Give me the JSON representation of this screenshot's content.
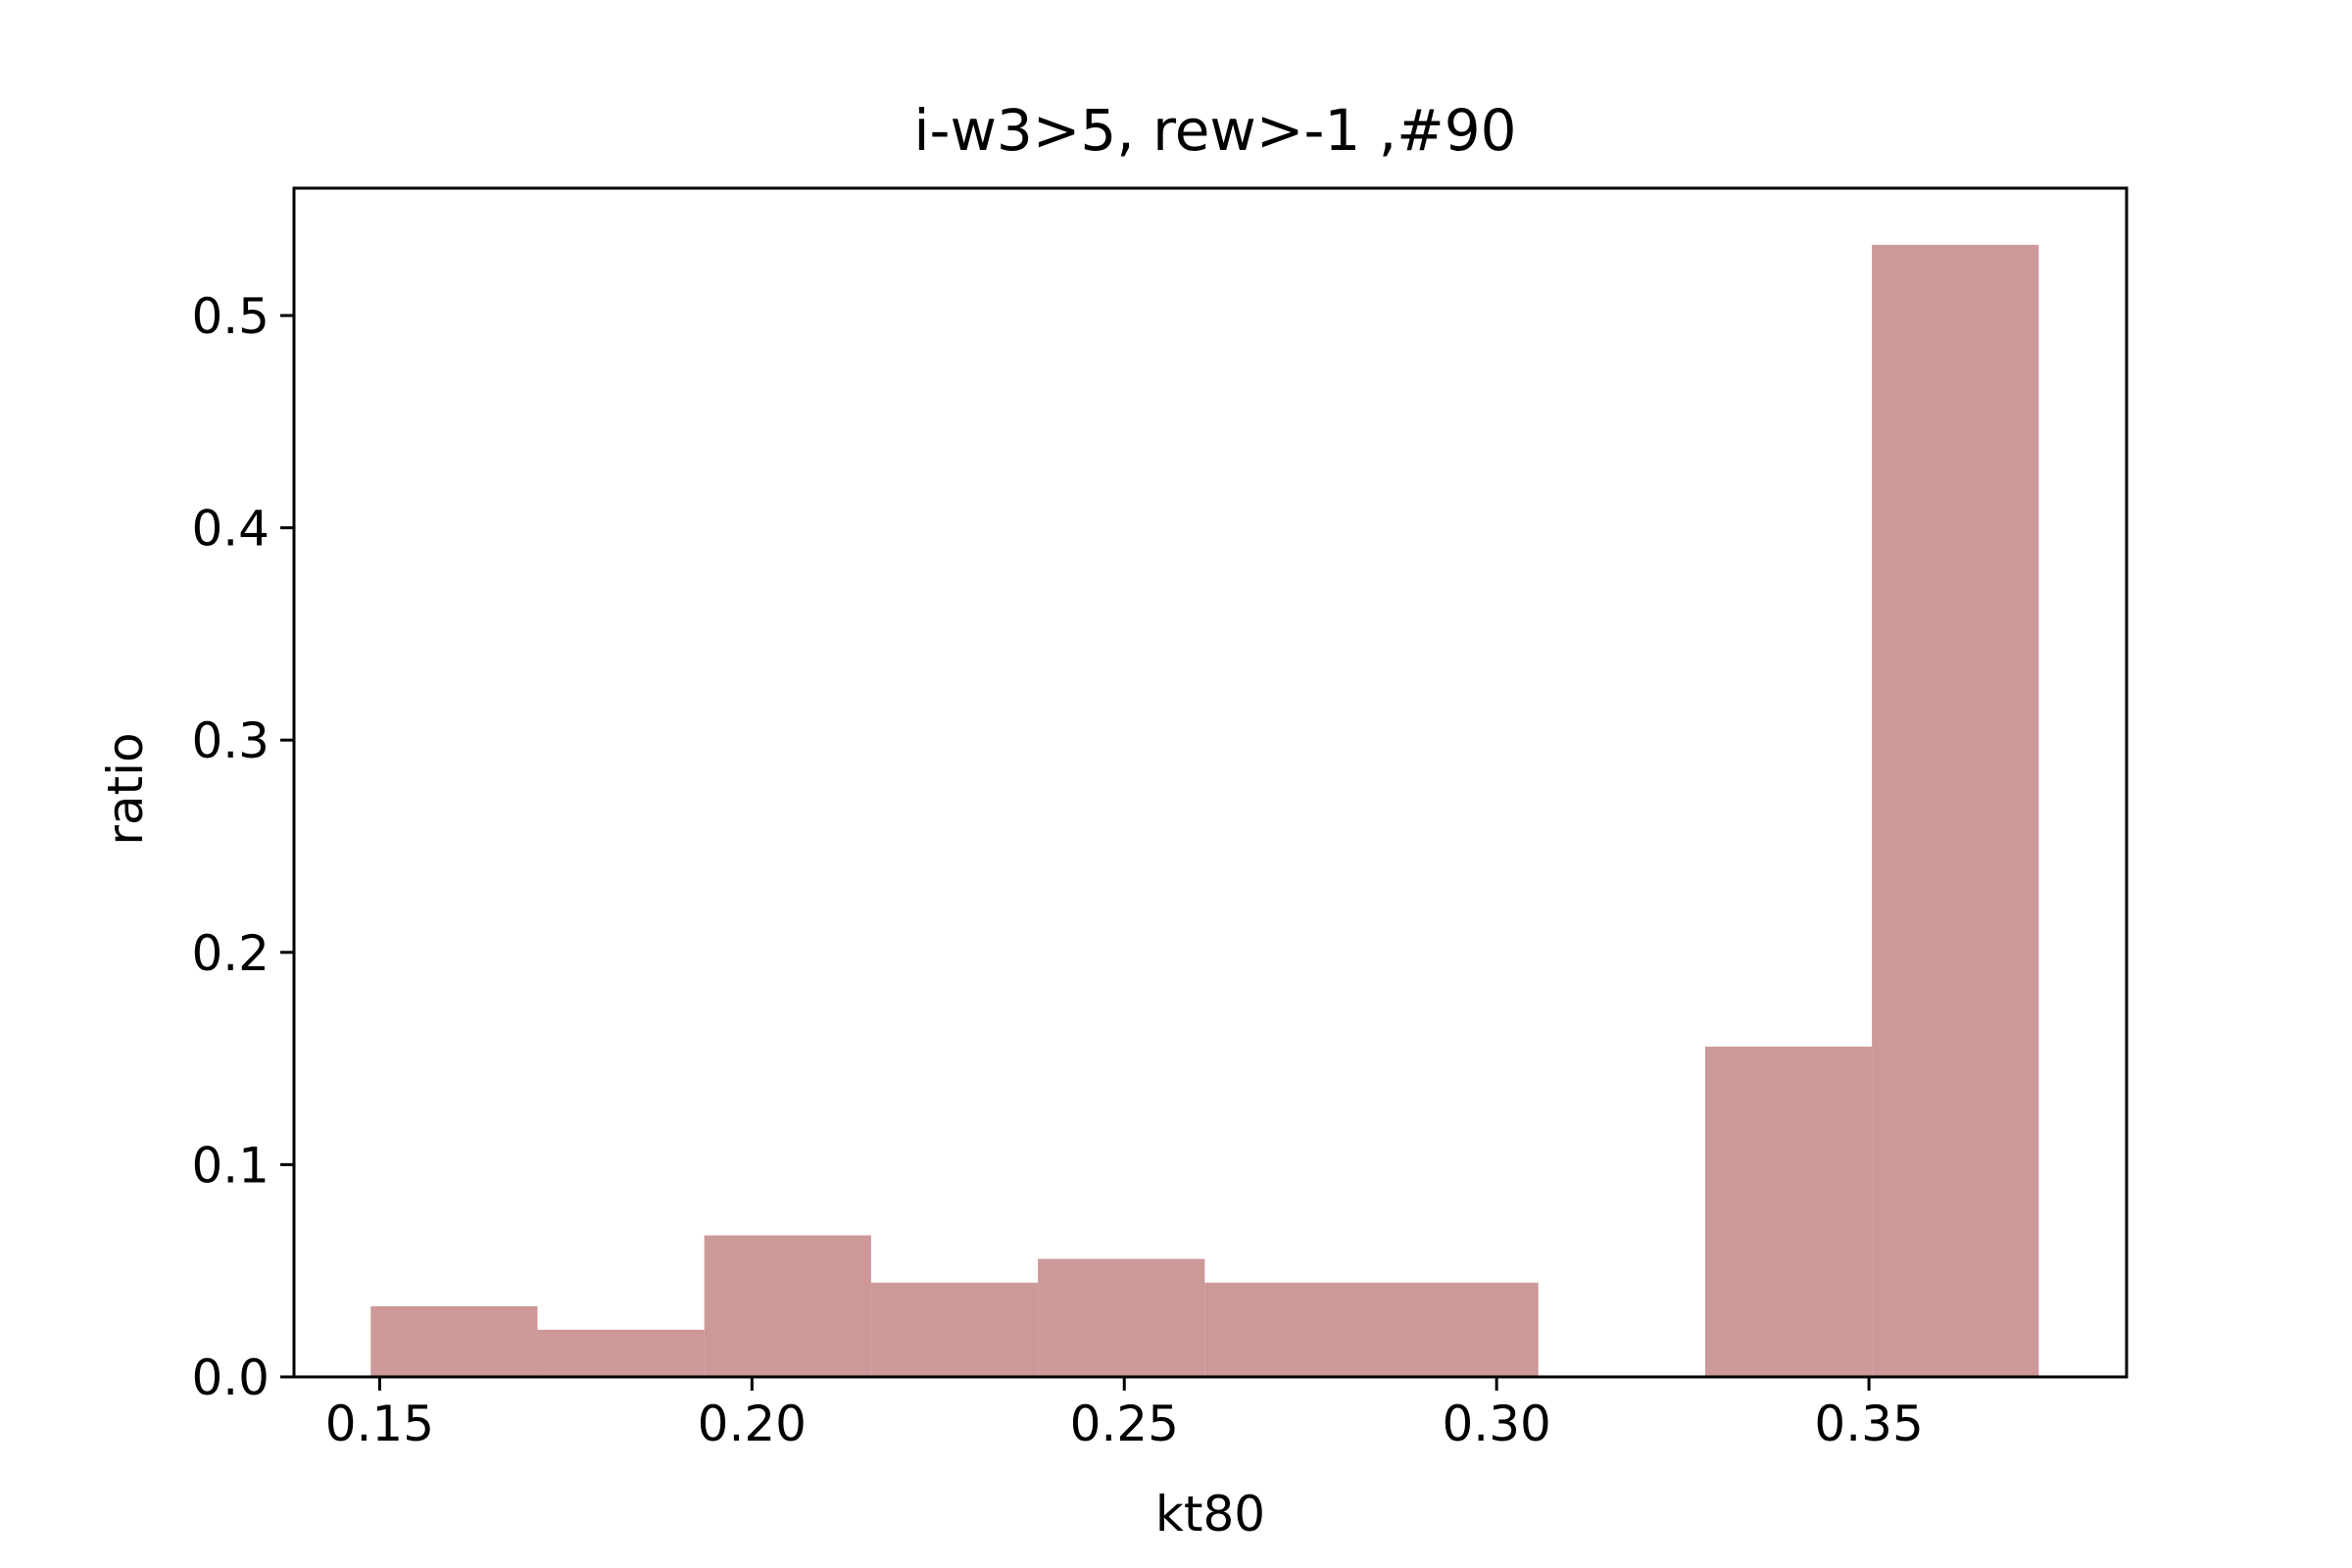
{
  "chart_data": {
    "type": "bar",
    "title": "i-w3>5, rew>-1 ,#90",
    "xlabel": "kt80",
    "ylabel": "ratio",
    "xlim": [
      0.1385,
      0.3846
    ],
    "ylim": [
      0,
      0.56
    ],
    "grid": false,
    "bar_color": "#cd9898",
    "bins": [
      {
        "x0": 0.1488,
        "x1": 0.1712,
        "value": 0.0333
      },
      {
        "x0": 0.1712,
        "x1": 0.1936,
        "value": 0.0222
      },
      {
        "x0": 0.1936,
        "x1": 0.216,
        "value": 0.0667
      },
      {
        "x0": 0.216,
        "x1": 0.2384,
        "value": 0.0444
      },
      {
        "x0": 0.2384,
        "x1": 0.2608,
        "value": 0.0556
      },
      {
        "x0": 0.2608,
        "x1": 0.2832,
        "value": 0.0444
      },
      {
        "x0": 0.2832,
        "x1": 0.3056,
        "value": 0.0444
      },
      {
        "x0": 0.3056,
        "x1": 0.328,
        "value": 0.0
      },
      {
        "x0": 0.328,
        "x1": 0.3504,
        "value": 0.1556
      },
      {
        "x0": 0.3504,
        "x1": 0.3728,
        "value": 0.5333
      }
    ],
    "xticks": [
      {
        "value": 0.15,
        "label": "0.15"
      },
      {
        "value": 0.2,
        "label": "0.20"
      },
      {
        "value": 0.25,
        "label": "0.25"
      },
      {
        "value": 0.3,
        "label": "0.30"
      },
      {
        "value": 0.35,
        "label": "0.35"
      }
    ],
    "yticks": [
      {
        "value": 0.0,
        "label": "0.0"
      },
      {
        "value": 0.1,
        "label": "0.1"
      },
      {
        "value": 0.2,
        "label": "0.2"
      },
      {
        "value": 0.3,
        "label": "0.3"
      },
      {
        "value": 0.4,
        "label": "0.4"
      },
      {
        "value": 0.5,
        "label": "0.5"
      }
    ]
  }
}
